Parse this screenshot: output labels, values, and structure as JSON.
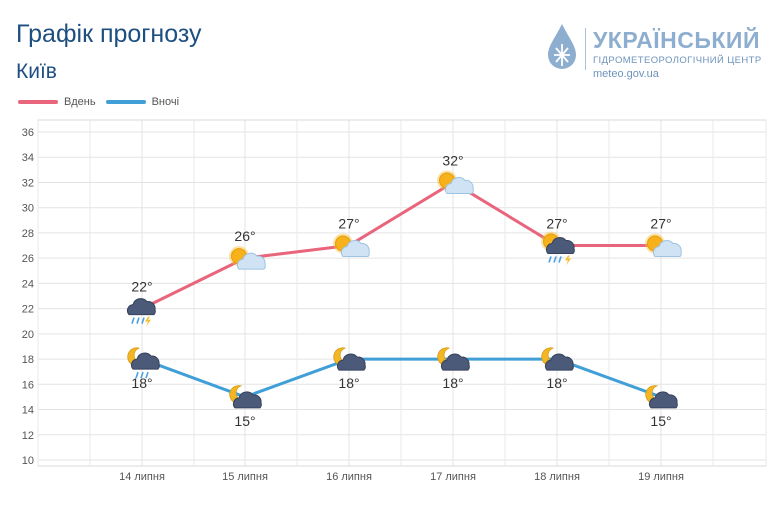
{
  "header": {
    "title": "Графік прогнозу",
    "city": "Київ"
  },
  "logo": {
    "name": "УКРАЇНСЬКИЙ",
    "tagline": "ГІДРОМЕТЕОРОЛОГІЧНИЙ ЦЕНТР",
    "url": "meteo.gov.ua"
  },
  "legend": {
    "day_label": "Вдень",
    "night_label": "Вночі"
  },
  "colors": {
    "day": "#e8657c",
    "night": "#419fd8",
    "title": "#1d4f80",
    "logo": "#8eaed0"
  },
  "chart_data": {
    "type": "line",
    "categories": [
      "14 липня",
      "15 липня",
      "16 липня",
      "17 липня",
      "18 липня",
      "19 липня"
    ],
    "series": [
      {
        "name": "Вдень",
        "values": [
          22,
          26,
          27,
          32,
          27,
          27
        ],
        "labels": [
          "22°",
          "26°",
          "27°",
          "32°",
          "27°",
          "27°"
        ],
        "icons": [
          "thunderstorm-rain-icon",
          "sun-cloud-icon",
          "sun-cloud-icon",
          "sun-cloud-icon",
          "sun-thunderstorm-rain-icon",
          "sun-cloud-icon"
        ]
      },
      {
        "name": "Вночі",
        "values": [
          18,
          15,
          18,
          18,
          18,
          15
        ],
        "labels": [
          "18°",
          "15°",
          "18°",
          "18°",
          "18°",
          "15°"
        ],
        "icons": [
          "moon-cloud-rain-icon",
          "moon-cloud-icon",
          "moon-cloud-icon",
          "moon-cloud-icon",
          "moon-cloud-icon",
          "moon-cloud-icon"
        ]
      }
    ],
    "ylim": [
      10,
      36
    ],
    "yticks": [
      "10",
      "12",
      "14",
      "16",
      "18",
      "20",
      "22",
      "24",
      "26",
      "28",
      "30",
      "32",
      "34",
      "36"
    ],
    "grid": true,
    "legend_position": "top-left"
  }
}
